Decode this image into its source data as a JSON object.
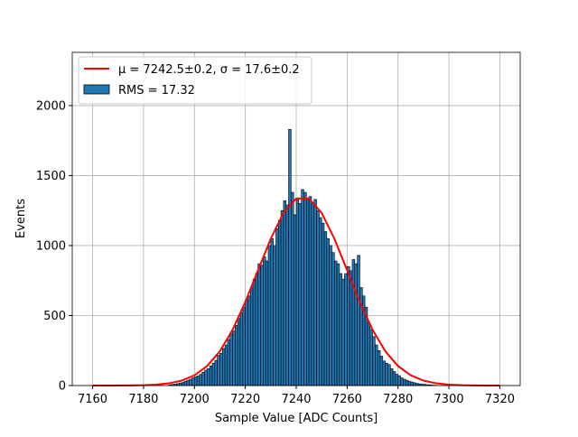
{
  "chart_data": {
    "type": "histogram",
    "xlabel": "Sample Value [ADC Counts]",
    "ylabel": "Events",
    "name": "RMS = 17.32",
    "color": "#1f77b4",
    "edgecolor": "#000000",
    "bins": [
      7190,
      7191,
      7192,
      7193,
      7194,
      7195,
      7196,
      7197,
      7198,
      7199,
      7200,
      7201,
      7202,
      7203,
      7204,
      7205,
      7206,
      7207,
      7208,
      7209,
      7210,
      7211,
      7212,
      7213,
      7214,
      7215,
      7216,
      7217,
      7218,
      7219,
      7220,
      7221,
      7222,
      7223,
      7224,
      7225,
      7226,
      7227,
      7228,
      7229,
      7230,
      7231,
      7232,
      7233,
      7234,
      7235,
      7236,
      7237,
      7238,
      7239,
      7240,
      7241,
      7242,
      7243,
      7244,
      7245,
      7246,
      7247,
      7248,
      7249,
      7250,
      7251,
      7252,
      7253,
      7254,
      7255,
      7256,
      7257,
      7258,
      7259,
      7260,
      7261,
      7262,
      7263,
      7264,
      7265,
      7266,
      7267,
      7268,
      7269,
      7270,
      7271,
      7272,
      7273,
      7274,
      7275,
      7276,
      7277,
      7278,
      7279,
      7280,
      7281,
      7282,
      7283,
      7284,
      7285,
      7286,
      7287,
      7288,
      7289,
      7290,
      7291,
      7292,
      7293,
      7294,
      7295
    ],
    "values": [
      5,
      8,
      10,
      14,
      18,
      22,
      30,
      38,
      45,
      55,
      62,
      68,
      80,
      95,
      110,
      120,
      140,
      160,
      180,
      215,
      230,
      265,
      290,
      330,
      370,
      390,
      430,
      480,
      520,
      560,
      610,
      640,
      700,
      760,
      800,
      870,
      860,
      920,
      890,
      1000,
      1050,
      1000,
      1120,
      1180,
      1250,
      1320,
      1290,
      1830,
      1380,
      1220,
      1340,
      1300,
      1400,
      1380,
      1340,
      1350,
      1300,
      1330,
      1250,
      1200,
      1160,
      1100,
      1050,
      1000,
      950,
      890,
      870,
      800,
      760,
      800,
      850,
      820,
      900,
      870,
      930,
      700,
      640,
      560,
      450,
      400,
      350,
      290,
      250,
      210,
      175,
      160,
      150,
      120,
      100,
      80,
      70,
      55,
      45,
      38,
      30,
      25,
      20,
      15,
      12,
      10,
      8,
      6,
      5,
      3,
      2
    ],
    "fit": {
      "name": "μ = 7242.5±0.2, σ = 17.6±0.2",
      "color": "#ff0000",
      "x": [
        7160,
        7165,
        7170,
        7175,
        7180,
        7185,
        7190,
        7195,
        7200,
        7205,
        7210,
        7215,
        7220,
        7225,
        7230,
        7235,
        7240,
        7245,
        7250,
        7255,
        7260,
        7265,
        7270,
        7275,
        7280,
        7285,
        7290,
        7295,
        7300,
        7305,
        7310,
        7315,
        7320
      ],
      "values": [
        0,
        0.08,
        0.28,
        0.86,
        2.47,
        6.5,
        15.8,
        35.5,
        73.3,
        139,
        245,
        398,
        597,
        824,
        1049,
        1233,
        1336,
        1336,
        1233,
        1049,
        824,
        597,
        398,
        245,
        139,
        73.3,
        35.5,
        15.8,
        6.5,
        2.47,
        0.86,
        0.28,
        0.08
      ]
    },
    "xlim": [
      7152,
      7328
    ],
    "ylim": [
      0,
      2380
    ],
    "xticks": [
      7160,
      7180,
      7200,
      7220,
      7240,
      7260,
      7280,
      7300,
      7320
    ],
    "yticks": [
      0,
      500,
      1000,
      1500,
      2000
    ],
    "grid": true,
    "legend": "upper left"
  }
}
